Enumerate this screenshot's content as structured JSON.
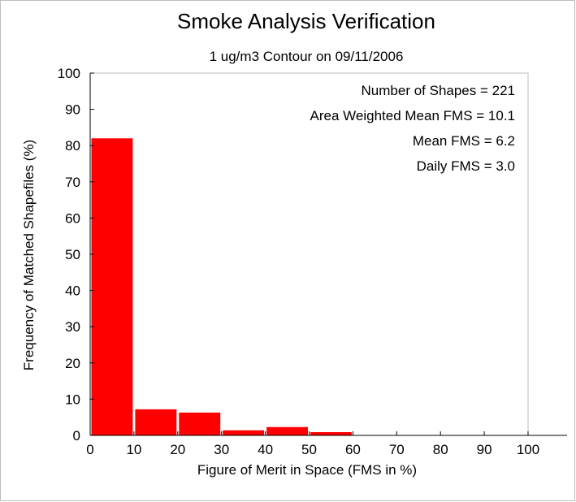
{
  "chart_data": {
    "type": "bar",
    "title": "Smoke Analysis Verification",
    "subtitle": "1 ug/m3 Contour on 09/11/2006",
    "xlabel": "Figure of Merit in Space (FMS in %)",
    "ylabel": "Frequency of Matched Shapefiles (%)",
    "xlim": [
      0,
      100
    ],
    "ylim": [
      0,
      100
    ],
    "x_ticks": [
      "0",
      "10",
      "20",
      "30",
      "40",
      "50",
      "60",
      "70",
      "80",
      "90",
      "100"
    ],
    "y_ticks": [
      "0",
      "10",
      "20",
      "30",
      "40",
      "50",
      "60",
      "70",
      "80",
      "90",
      "100"
    ],
    "bins": [
      [
        0,
        10
      ],
      [
        10,
        20
      ],
      [
        20,
        30
      ],
      [
        30,
        40
      ],
      [
        40,
        50
      ],
      [
        50,
        60
      ],
      [
        60,
        70
      ],
      [
        70,
        80
      ],
      [
        80,
        90
      ],
      [
        90,
        100
      ],
      [
        100,
        110
      ]
    ],
    "values": [
      82,
      7.2,
      6.3,
      1.4,
      2.3,
      0.9,
      0.1,
      0.1,
      0.1,
      0.1,
      0.1
    ],
    "bar_color": "#ff0000",
    "stats": [
      "Number of Shapes = 221",
      "Area Weighted Mean FMS = 10.1",
      "Mean FMS = 6.2",
      "Daily FMS = 3.0"
    ],
    "grid": false
  }
}
